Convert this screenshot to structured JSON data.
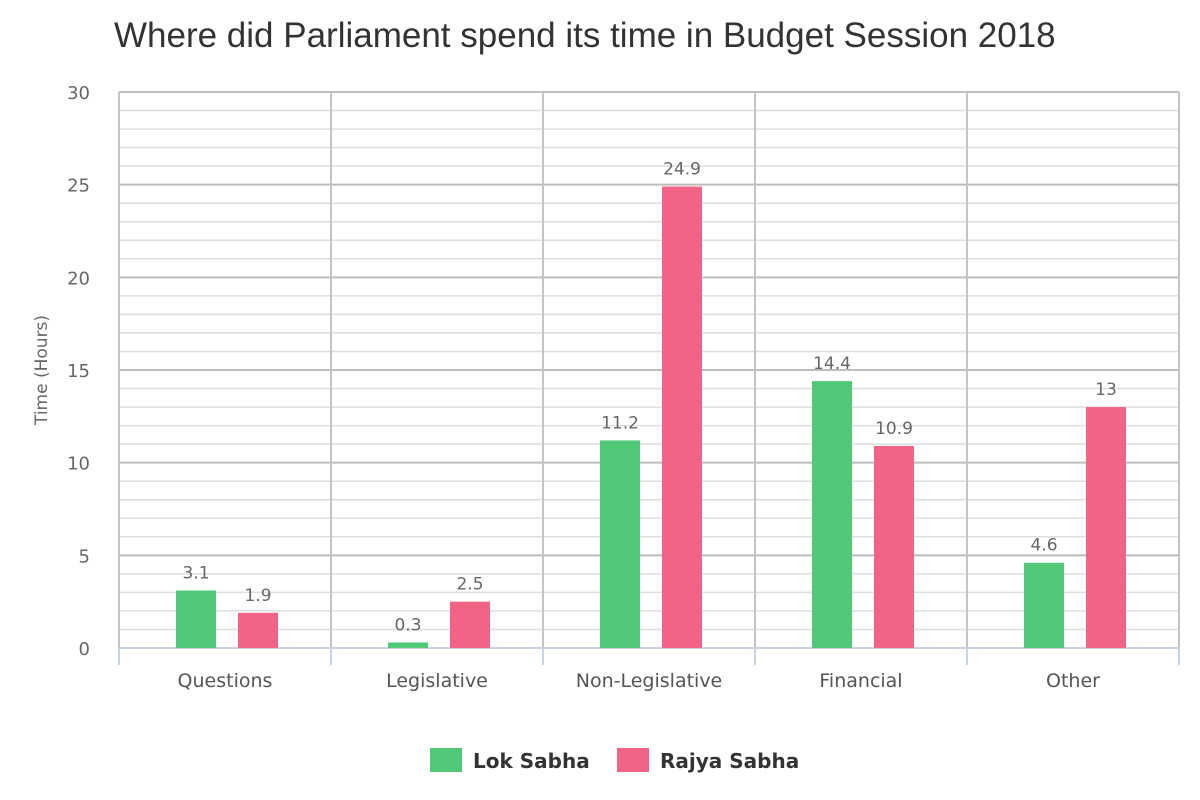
{
  "chart_data": {
    "type": "bar",
    "title": "Where did Parliament spend its time in Budget Session 2018",
    "xlabel": "",
    "ylabel": "Time (Hours)",
    "ylim": [
      0,
      30
    ],
    "yticks": [
      0,
      5,
      10,
      15,
      20,
      25,
      30
    ],
    "grid": true,
    "legend_position": "bottom",
    "categories": [
      "Questions",
      "Legislative",
      "Non-Legislative",
      "Financial",
      "Other"
    ],
    "series": [
      {
        "name": "Lok Sabha",
        "color": "#50c878",
        "values": [
          3.1,
          0.3,
          11.2,
          14.4,
          4.6
        ]
      },
      {
        "name": "Rajya Sabha",
        "color": "#f06585",
        "values": [
          1.9,
          2.5,
          24.9,
          10.9,
          13
        ]
      }
    ]
  }
}
